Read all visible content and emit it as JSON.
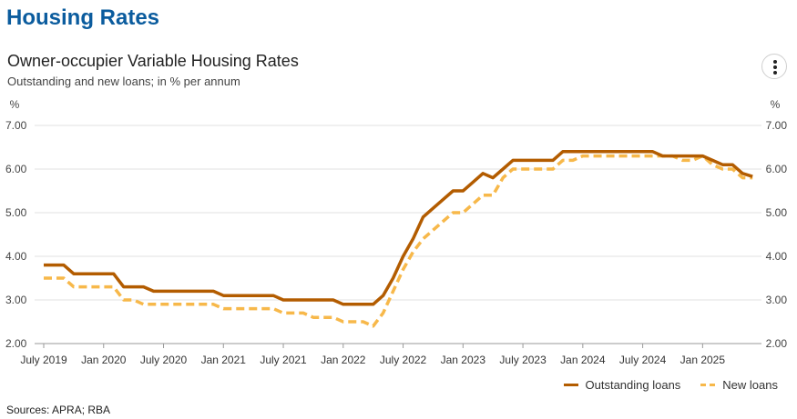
{
  "page_title": "Housing Rates",
  "menu": {
    "icon": "more-vertical-icon"
  },
  "sources": "Sources: APRA; RBA",
  "chart_data": {
    "type": "line",
    "title": "Owner-occupier Variable Housing Rates",
    "subtitle": "Outstanding and new loans; in % per annum",
    "y_unit_left": "%",
    "y_unit_right": "%",
    "ylim": [
      2,
      7
    ],
    "y_ticks": [
      "7.00",
      "6.00",
      "5.00",
      "4.00",
      "3.00",
      "2.00"
    ],
    "x_range": [
      "2019-06",
      "2025-08"
    ],
    "x_ticks": [
      {
        "date": "2019-07",
        "label": "July 2019"
      },
      {
        "date": "2020-01",
        "label": "Jan 2020"
      },
      {
        "date": "2020-07",
        "label": "July 2020"
      },
      {
        "date": "2021-01",
        "label": "Jan 2021"
      },
      {
        "date": "2021-07",
        "label": "July 2021"
      },
      {
        "date": "2022-01",
        "label": "Jan 2022"
      },
      {
        "date": "2022-07",
        "label": "July 2022"
      },
      {
        "date": "2023-01",
        "label": "Jan 2023"
      },
      {
        "date": "2023-07",
        "label": "July 2023"
      },
      {
        "date": "2024-01",
        "label": "Jan 2024"
      },
      {
        "date": "2024-07",
        "label": "July 2024"
      },
      {
        "date": "2025-01",
        "label": "Jan 2025"
      }
    ],
    "grid": true,
    "legend_position": "bottom-right",
    "series": [
      {
        "name": "Outstanding loans",
        "color": "#b35c00",
        "style": "solid",
        "points": [
          [
            "2019-07",
            3.8
          ],
          [
            "2019-08",
            3.8
          ],
          [
            "2019-09",
            3.8
          ],
          [
            "2019-10",
            3.6
          ],
          [
            "2019-11",
            3.6
          ],
          [
            "2019-12",
            3.6
          ],
          [
            "2020-01",
            3.6
          ],
          [
            "2020-02",
            3.6
          ],
          [
            "2020-03",
            3.3
          ],
          [
            "2020-04",
            3.3
          ],
          [
            "2020-05",
            3.3
          ],
          [
            "2020-06",
            3.2
          ],
          [
            "2020-07",
            3.2
          ],
          [
            "2020-08",
            3.2
          ],
          [
            "2020-09",
            3.2
          ],
          [
            "2020-10",
            3.2
          ],
          [
            "2020-11",
            3.2
          ],
          [
            "2020-12",
            3.2
          ],
          [
            "2021-01",
            3.1
          ],
          [
            "2021-02",
            3.1
          ],
          [
            "2021-03",
            3.1
          ],
          [
            "2021-04",
            3.1
          ],
          [
            "2021-05",
            3.1
          ],
          [
            "2021-06",
            3.1
          ],
          [
            "2021-07",
            3.0
          ],
          [
            "2021-08",
            3.0
          ],
          [
            "2021-09",
            3.0
          ],
          [
            "2021-10",
            3.0
          ],
          [
            "2021-11",
            3.0
          ],
          [
            "2021-12",
            3.0
          ],
          [
            "2022-01",
            2.9
          ],
          [
            "2022-02",
            2.9
          ],
          [
            "2022-03",
            2.9
          ],
          [
            "2022-04",
            2.9
          ],
          [
            "2022-05",
            3.1
          ],
          [
            "2022-06",
            3.5
          ],
          [
            "2022-07",
            4.0
          ],
          [
            "2022-08",
            4.4
          ],
          [
            "2022-09",
            4.9
          ],
          [
            "2022-10",
            5.1
          ],
          [
            "2022-11",
            5.3
          ],
          [
            "2022-12",
            5.5
          ],
          [
            "2023-01",
            5.5
          ],
          [
            "2023-02",
            5.7
          ],
          [
            "2023-03",
            5.9
          ],
          [
            "2023-04",
            5.8
          ],
          [
            "2023-05",
            6.0
          ],
          [
            "2023-06",
            6.2
          ],
          [
            "2023-07",
            6.2
          ],
          [
            "2023-08",
            6.2
          ],
          [
            "2023-09",
            6.2
          ],
          [
            "2023-10",
            6.2
          ],
          [
            "2023-11",
            6.4
          ],
          [
            "2023-12",
            6.4
          ],
          [
            "2024-01",
            6.4
          ],
          [
            "2024-02",
            6.4
          ],
          [
            "2024-03",
            6.4
          ],
          [
            "2024-04",
            6.4
          ],
          [
            "2024-05",
            6.4
          ],
          [
            "2024-06",
            6.4
          ],
          [
            "2024-07",
            6.4
          ],
          [
            "2024-08",
            6.4
          ],
          [
            "2024-09",
            6.3
          ],
          [
            "2024-10",
            6.3
          ],
          [
            "2024-11",
            6.3
          ],
          [
            "2024-12",
            6.3
          ],
          [
            "2025-01",
            6.3
          ],
          [
            "2025-02",
            6.2
          ],
          [
            "2025-03",
            6.1
          ],
          [
            "2025-04",
            6.1
          ],
          [
            "2025-05",
            5.9
          ],
          [
            "2025-06",
            5.83
          ]
        ]
      },
      {
        "name": "New loans",
        "color": "#f7b84a",
        "style": "dashed",
        "points": [
          [
            "2019-07",
            3.5
          ],
          [
            "2019-08",
            3.5
          ],
          [
            "2019-09",
            3.5
          ],
          [
            "2019-10",
            3.3
          ],
          [
            "2019-11",
            3.3
          ],
          [
            "2019-12",
            3.3
          ],
          [
            "2020-01",
            3.3
          ],
          [
            "2020-02",
            3.3
          ],
          [
            "2020-03",
            3.0
          ],
          [
            "2020-04",
            3.0
          ],
          [
            "2020-05",
            2.9
          ],
          [
            "2020-06",
            2.9
          ],
          [
            "2020-07",
            2.9
          ],
          [
            "2020-08",
            2.9
          ],
          [
            "2020-09",
            2.9
          ],
          [
            "2020-10",
            2.9
          ],
          [
            "2020-11",
            2.9
          ],
          [
            "2020-12",
            2.9
          ],
          [
            "2021-01",
            2.8
          ],
          [
            "2021-02",
            2.8
          ],
          [
            "2021-03",
            2.8
          ],
          [
            "2021-04",
            2.8
          ],
          [
            "2021-05",
            2.8
          ],
          [
            "2021-06",
            2.8
          ],
          [
            "2021-07",
            2.7
          ],
          [
            "2021-08",
            2.7
          ],
          [
            "2021-09",
            2.7
          ],
          [
            "2021-10",
            2.6
          ],
          [
            "2021-11",
            2.6
          ],
          [
            "2021-12",
            2.6
          ],
          [
            "2022-01",
            2.5
          ],
          [
            "2022-02",
            2.5
          ],
          [
            "2022-03",
            2.5
          ],
          [
            "2022-04",
            2.4
          ],
          [
            "2022-05",
            2.7
          ],
          [
            "2022-06",
            3.2
          ],
          [
            "2022-07",
            3.7
          ],
          [
            "2022-08",
            4.1
          ],
          [
            "2022-09",
            4.4
          ],
          [
            "2022-10",
            4.6
          ],
          [
            "2022-11",
            4.8
          ],
          [
            "2022-12",
            5.0
          ],
          [
            "2023-01",
            5.0
          ],
          [
            "2023-02",
            5.2
          ],
          [
            "2023-03",
            5.4
          ],
          [
            "2023-04",
            5.4
          ],
          [
            "2023-05",
            5.8
          ],
          [
            "2023-06",
            6.0
          ],
          [
            "2023-07",
            6.0
          ],
          [
            "2023-08",
            6.0
          ],
          [
            "2023-09",
            6.0
          ],
          [
            "2023-10",
            6.0
          ],
          [
            "2023-11",
            6.2
          ],
          [
            "2023-12",
            6.2
          ],
          [
            "2024-01",
            6.3
          ],
          [
            "2024-02",
            6.3
          ],
          [
            "2024-03",
            6.3
          ],
          [
            "2024-04",
            6.3
          ],
          [
            "2024-05",
            6.3
          ],
          [
            "2024-06",
            6.3
          ],
          [
            "2024-07",
            6.3
          ],
          [
            "2024-08",
            6.3
          ],
          [
            "2024-09",
            6.3
          ],
          [
            "2024-10",
            6.3
          ],
          [
            "2024-11",
            6.2
          ],
          [
            "2024-12",
            6.2
          ],
          [
            "2025-01",
            6.3
          ],
          [
            "2025-02",
            6.1
          ],
          [
            "2025-03",
            6.0
          ],
          [
            "2025-04",
            6.0
          ],
          [
            "2025-05",
            5.8
          ],
          [
            "2025-06",
            5.8
          ]
        ]
      }
    ]
  }
}
